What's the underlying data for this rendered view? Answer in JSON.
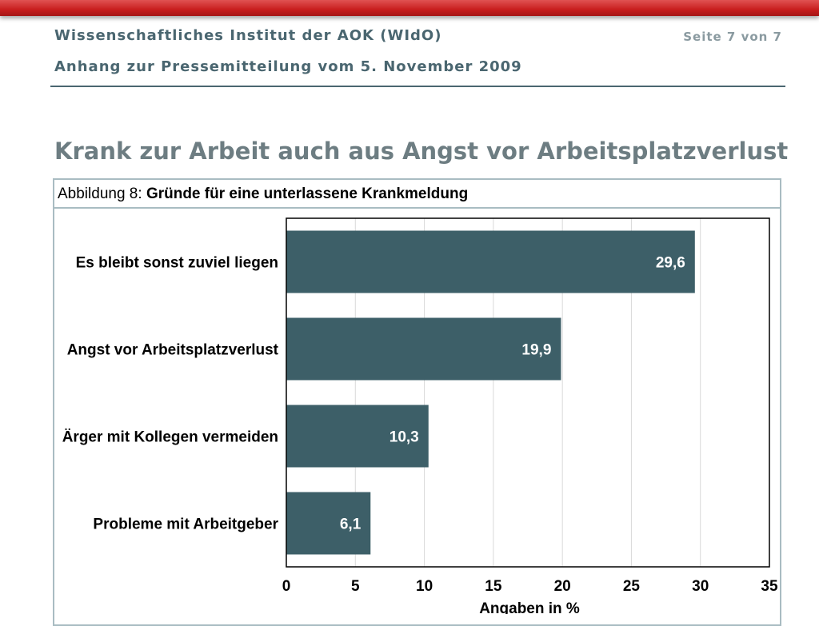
{
  "header": {
    "institute": "Wissenschaftliches Institut der AOK (WIdO)",
    "subtitle": "Anhang zur Pressemitteilung vom 5. November 2009",
    "page": "Seite 7 von 7"
  },
  "slide_title": "Krank zur Arbeit auch aus Angst vor Arbeitsplatzverlust",
  "figure": {
    "label": "Abbildung 8:",
    "caption": "Gründe für eine unterlassene Krankmeldung"
  },
  "colors": {
    "bar": "#3d5f68",
    "accent_red": "#c81e1e"
  },
  "chart_data": {
    "type": "bar",
    "orientation": "horizontal",
    "categories": [
      "Es bleibt sonst zuviel liegen",
      "Angst vor Arbeitsplatzverlust",
      "Ärger mit Kollegen vermeiden",
      "Probleme mit Arbeitgeber"
    ],
    "values": [
      29.6,
      19.9,
      10.3,
      6.1
    ],
    "value_labels": [
      "29,6",
      "19,9",
      "10,3",
      "6,1"
    ],
    "xlabel": "Angaben in %",
    "xlim": [
      0,
      35
    ],
    "xticks": [
      0,
      5,
      10,
      15,
      20,
      25,
      30,
      35
    ],
    "grid": true
  }
}
